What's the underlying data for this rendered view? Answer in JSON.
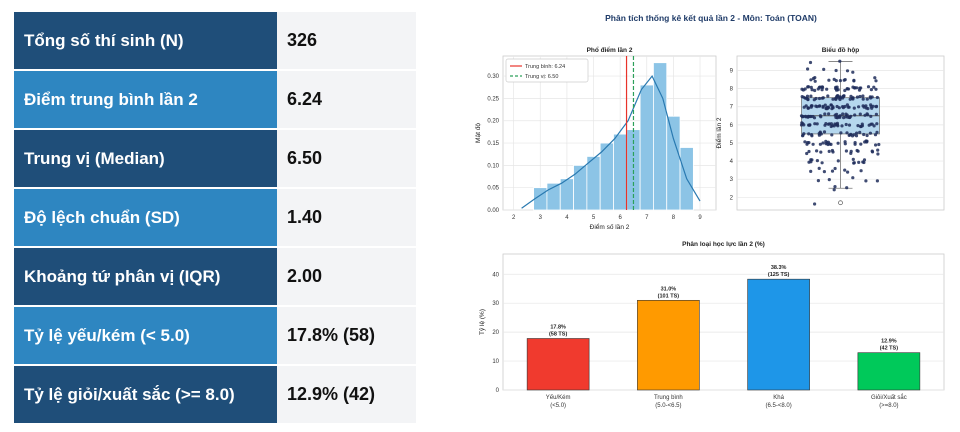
{
  "stats": [
    {
      "label": "Tổng số thí sinh (N)",
      "value": "326",
      "tone": "dark"
    },
    {
      "label": "Điểm trung bình lần 2",
      "value": "6.24",
      "tone": "light"
    },
    {
      "label": "Trung vị (Median)",
      "value": "6.50",
      "tone": "dark"
    },
    {
      "label": "Độ lệch chuẩn (SD)",
      "value": "1.40",
      "tone": "light"
    },
    {
      "label": "Khoảng tứ phân vị (IQR)",
      "value": "2.00",
      "tone": "dark"
    },
    {
      "label": "Tỷ lệ yếu/kém (< 5.0)",
      "value": "17.8% (58)",
      "tone": "light"
    },
    {
      "label": "Tỷ lệ giỏi/xuất sắc (>= 8.0)",
      "value": "12.9% (42)",
      "tone": "dark"
    }
  ],
  "colors": {
    "dark": "#1f4e79",
    "light": "#2e86c1"
  },
  "suptitle": "Phân tích thống kê kết quả lần 2 - Môn: Toán (TOAN)",
  "chart_data": [
    {
      "type": "bar",
      "title": "Phổ điểm lần 2",
      "xlabel": "Điểm số lần 2",
      "ylabel": "Mật độ",
      "bin_edges": [
        2.75,
        3.25,
        3.75,
        4.25,
        4.75,
        5.25,
        5.75,
        6.25,
        6.75,
        7.25,
        7.75,
        8.25,
        8.75
      ],
      "values": [
        0.05,
        0.06,
        0.07,
        0.1,
        0.12,
        0.15,
        0.17,
        0.18,
        0.28,
        0.33,
        0.21,
        0.14
      ],
      "kde_x": [
        2.3,
        2.8,
        3.3,
        3.8,
        4.3,
        4.8,
        5.3,
        5.8,
        6.3,
        6.8,
        7.2,
        7.6,
        8.0,
        8.5,
        9.0
      ],
      "kde_y": [
        0.004,
        0.025,
        0.045,
        0.06,
        0.08,
        0.105,
        0.13,
        0.16,
        0.2,
        0.27,
        0.3,
        0.25,
        0.16,
        0.07,
        0.02
      ],
      "mean": 6.24,
      "median": 6.5,
      "legend": [
        "Trung bình: 6.24",
        "Trung vị: 6.50"
      ],
      "xlim": [
        1.6,
        9.6
      ],
      "ylim": [
        0,
        0.345
      ],
      "xticks": [
        "2",
        "3",
        "4",
        "5",
        "6",
        "7",
        "8",
        "9"
      ],
      "yticks": [
        "0.00",
        "0.05",
        "0.10",
        "0.15",
        "0.20",
        "0.25",
        "0.30"
      ],
      "grid": true,
      "legend_placement": "top-left"
    },
    {
      "type": "scatter",
      "title": "Biểu đồ hộp",
      "ylabel": "Điểm lần 2",
      "box": {
        "q1": 5.5,
        "median": 6.5,
        "q3": 7.5,
        "whisker_low": 2.5,
        "whisker_high": 9.5
      },
      "outliers": [
        1.7
      ],
      "ylim": [
        1.3,
        9.8
      ],
      "yticks": [
        "2",
        "3",
        "4",
        "5",
        "6",
        "7",
        "8",
        "9"
      ],
      "grid": true
    },
    {
      "type": "bar",
      "title": "Phân loại học lực lần 2 (%)",
      "ylabel": "Tỷ lệ (%)",
      "categories": [
        "Yếu/Kém",
        "Trung bình",
        "Khá",
        "Giỏi/Xuất sắc"
      ],
      "subcategories": [
        "(<5.0)",
        "(5.0-<6.5)",
        "(6.5-<8.0)",
        "(>=8.0)"
      ],
      "values": [
        17.8,
        31.0,
        38.3,
        12.9
      ],
      "labels_pct": [
        "17.8%",
        "31.0%",
        "38.3%",
        "12.9%"
      ],
      "labels_count": [
        "(58 TS)",
        "(101 TS)",
        "(125 TS)",
        "(42 TS)"
      ],
      "colors": [
        "#f03a2e",
        "#ff9a00",
        "#1e96e8",
        "#00c95a"
      ],
      "ylim": [
        0,
        47
      ],
      "yticks": [
        "0",
        "10",
        "20",
        "30",
        "40"
      ],
      "grid": true
    }
  ]
}
